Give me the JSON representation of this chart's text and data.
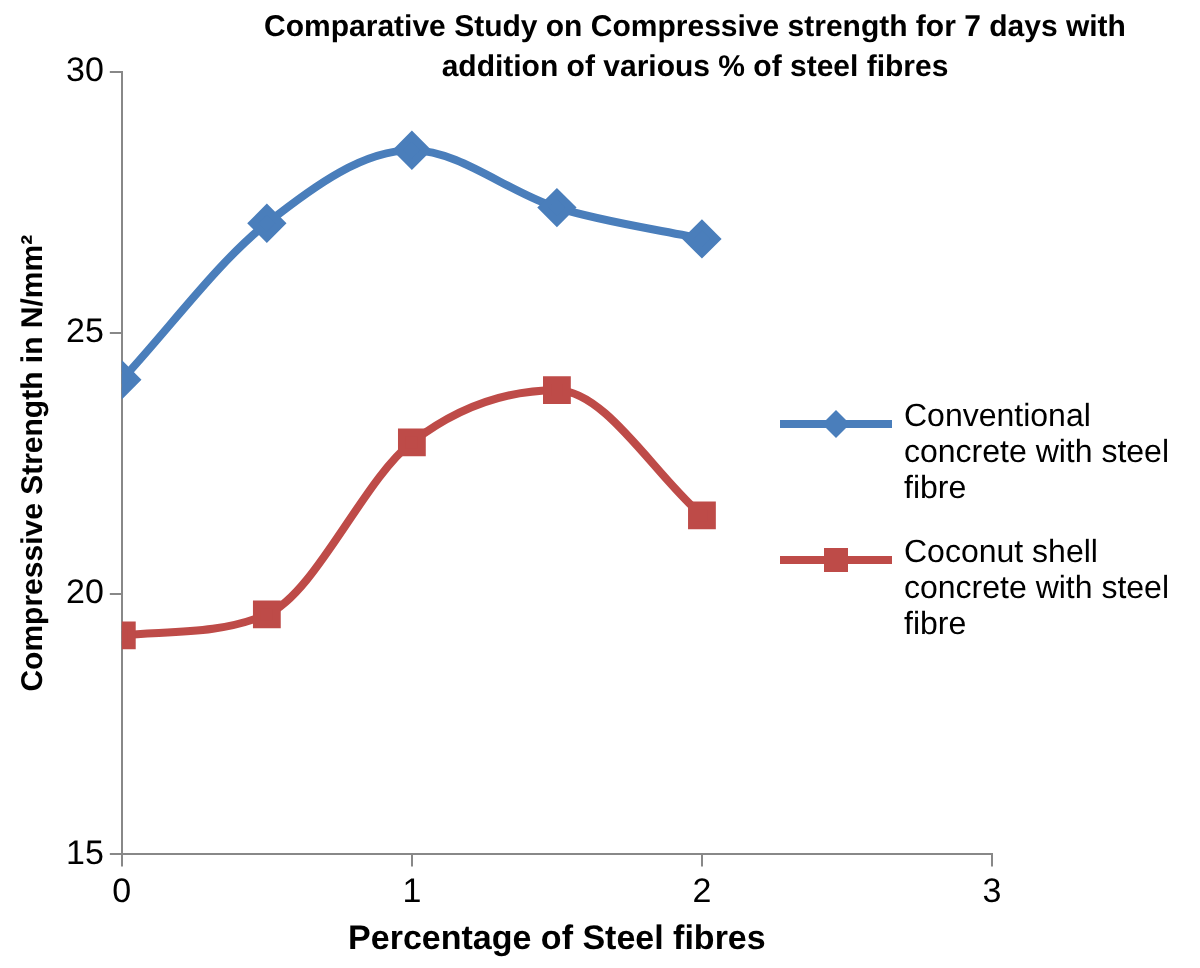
{
  "chart_data": {
    "type": "line",
    "title": "Comparative  Study on Compressive strength  for 7 days  with addition of  various % of steel fibres",
    "xlabel": "Percentage of Steel fibres",
    "ylabel": "Compressive Strength in N/mm²",
    "x": [
      0,
      0.5,
      1,
      1.5,
      2
    ],
    "series": [
      {
        "name": "Conventional concrete with steel fibre",
        "color": "#4a7ebb",
        "marker": "diamond",
        "values": [
          24.1,
          27.1,
          28.5,
          27.4,
          26.8
        ]
      },
      {
        "name": "Coconut shell concrete with steel fibre",
        "color": "#be4b48",
        "marker": "square",
        "values": [
          19.2,
          19.6,
          22.9,
          23.9,
          21.5
        ]
      }
    ],
    "xlim": [
      0,
      3
    ],
    "xticks": [
      0,
      1,
      2,
      3
    ],
    "ylim": [
      15,
      30
    ],
    "yticks": [
      15,
      20,
      25,
      30
    ],
    "grid": false,
    "legend": "right",
    "line_style": "solid"
  }
}
